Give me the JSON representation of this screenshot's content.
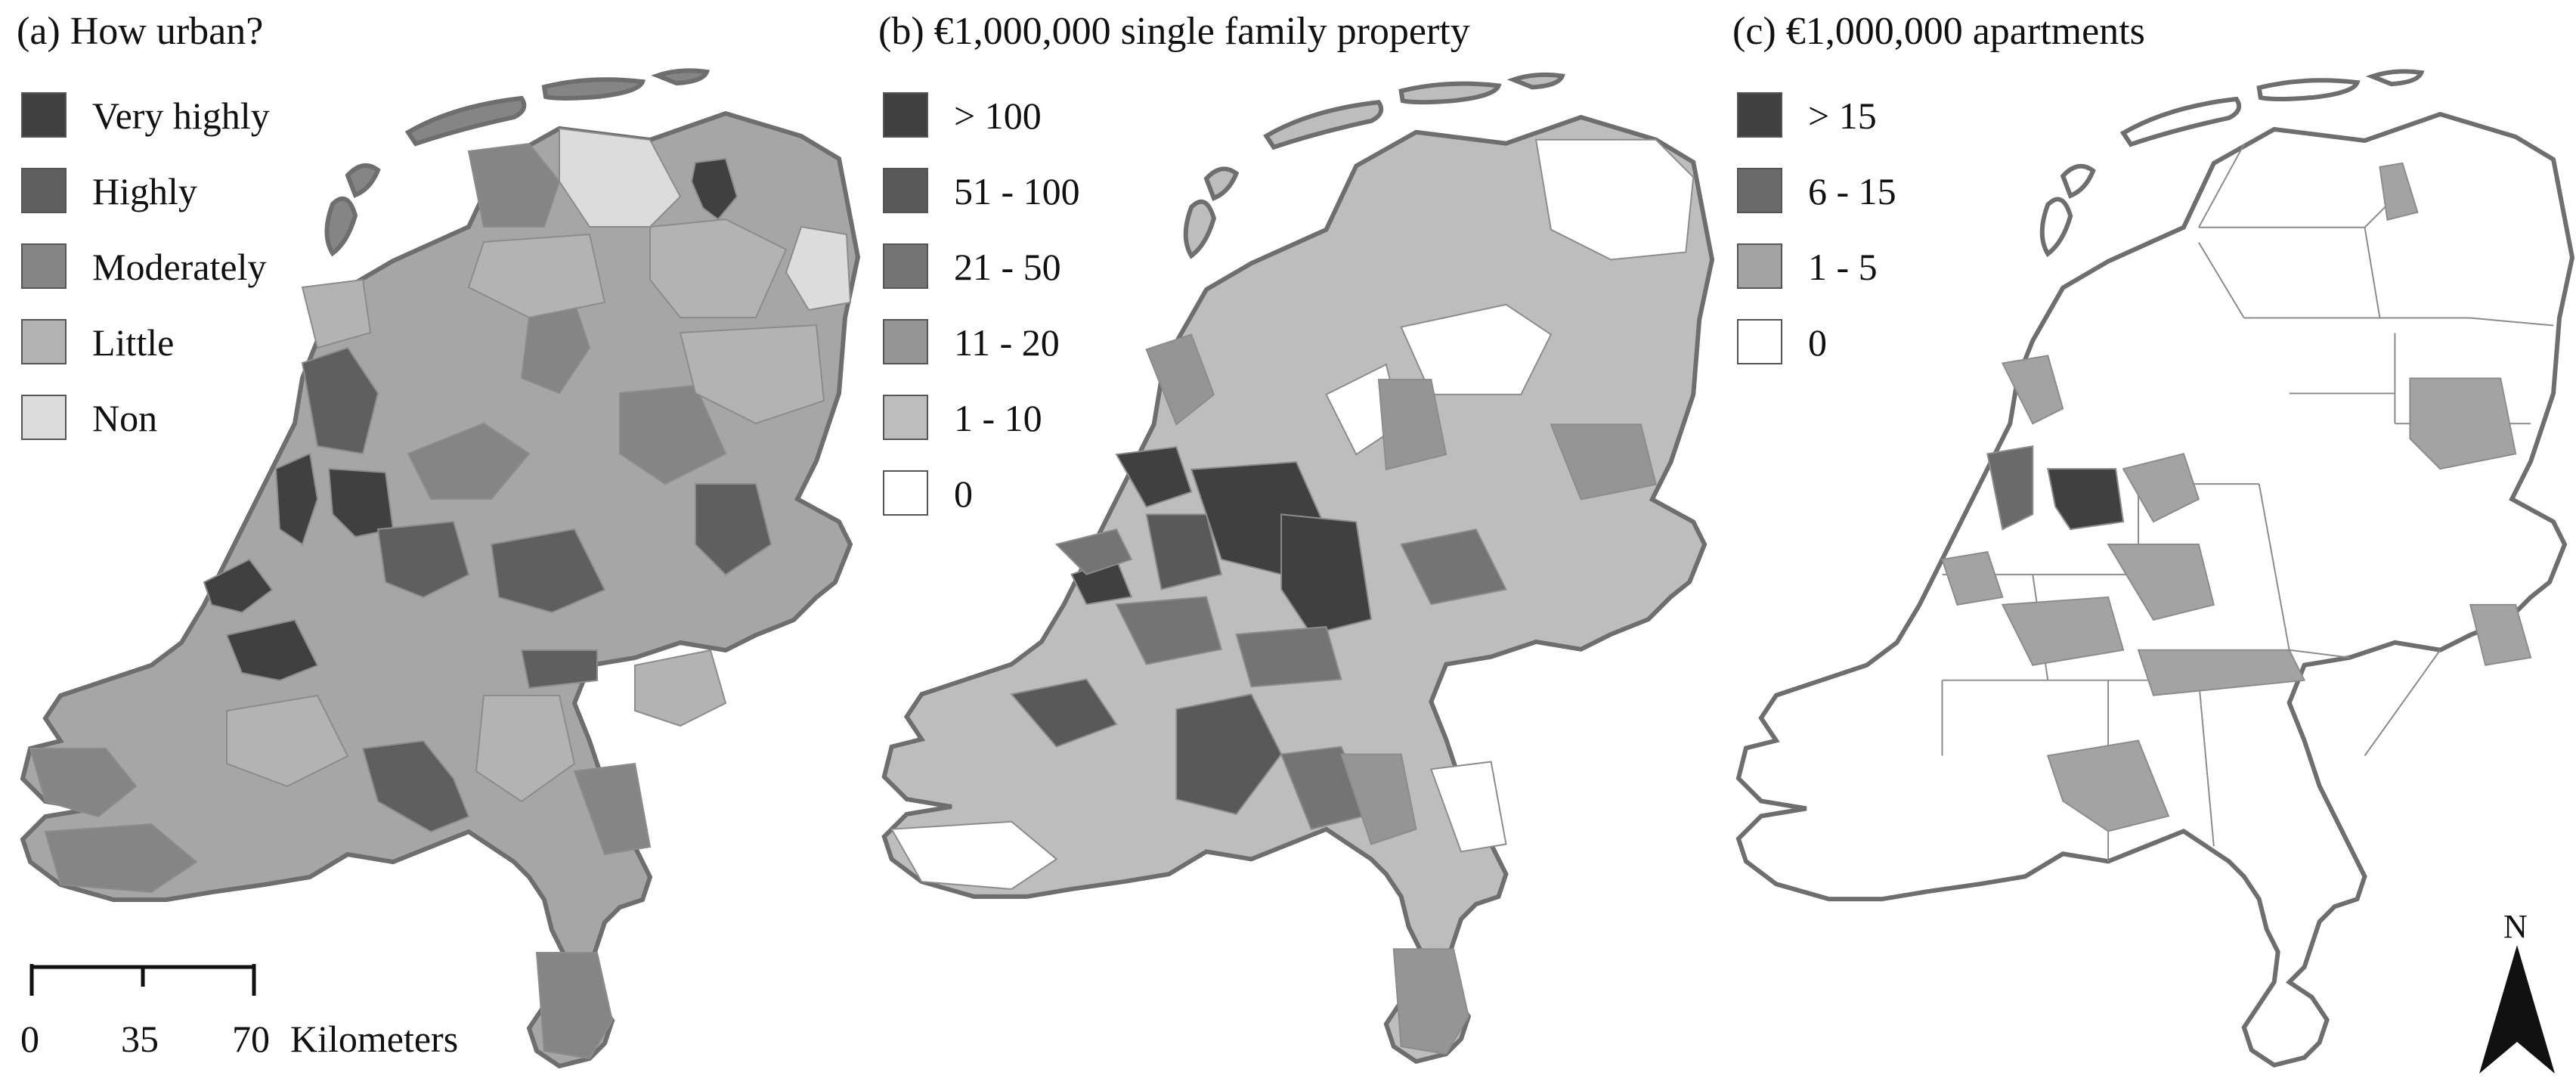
{
  "panels": [
    {
      "title": "(a) How urban?",
      "legend": [
        {
          "label": "Very highly",
          "color": "#404040"
        },
        {
          "label": "Highly",
          "color": "#5f5f5f"
        },
        {
          "label": "Moderately",
          "color": "#858585"
        },
        {
          "label": "Little",
          "color": "#b3b3b3"
        },
        {
          "label": "Non",
          "color": "#dcdcdc"
        }
      ]
    },
    {
      "title": "(b) €1,000,000 single family property",
      "legend": [
        {
          "label": "> 100",
          "color": "#404040"
        },
        {
          "label": "51 - 100",
          "color": "#595959"
        },
        {
          "label": "21 - 50",
          "color": "#747474"
        },
        {
          "label": "11 - 20",
          "color": "#959595"
        },
        {
          "label": "1 - 10",
          "color": "#bdbdbd"
        },
        {
          "label": "0",
          "color": "#ffffff"
        }
      ]
    },
    {
      "title": "(c) €1,000,000 apartments",
      "legend": [
        {
          "label": "> 15",
          "color": "#404040"
        },
        {
          "label": "6 - 15",
          "color": "#6a6a6a"
        },
        {
          "label": "1 - 5",
          "color": "#a3a3a3"
        },
        {
          "label": "0",
          "color": "#ffffff"
        }
      ]
    }
  ],
  "scale_bar": {
    "ticks": [
      "0",
      "35",
      "70"
    ],
    "unit": "Kilometers"
  },
  "north_arrow": {
    "label": "N"
  },
  "colors": {
    "outline": "#6e6e6e",
    "region_border": "#8c8c8c"
  }
}
